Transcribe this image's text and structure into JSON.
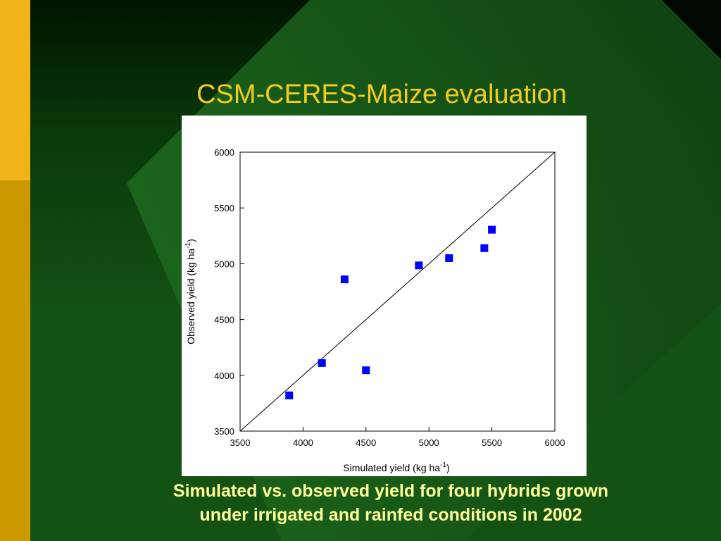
{
  "slide": {
    "title": "CSM-CERES-Maize evaluation",
    "caption_line1": "Simulated vs. observed yield for four hybrids grown",
    "caption_line2": "under irrigated and rainfed conditions in 2002"
  },
  "colors": {
    "background_dark": "#001A00",
    "background_green": "#145214",
    "diamond_green": "#1E6B1E",
    "sidebar_yellow": "#F0B418",
    "sidebar_gold": "#CC9900",
    "title": "#F2CC1E",
    "caption": "#FFFF99",
    "marker": "#0000FF"
  },
  "chart_data": {
    "type": "scatter",
    "title": "",
    "xlabel_main": "Simulated yield (kg ha",
    "xlabel_sup": "-1",
    "xlabel_end": ")",
    "ylabel_main": "Observed yield (kg ha",
    "ylabel_sup": "-1",
    "ylabel_end": ")",
    "xlim": [
      3500,
      6000
    ],
    "ylim": [
      3500,
      6000
    ],
    "xticks": [
      3500,
      4000,
      4500,
      5000,
      5500,
      6000
    ],
    "yticks": [
      3500,
      4000,
      4500,
      5000,
      5500,
      6000
    ],
    "reference_line": "1:1",
    "grid": false,
    "legend": "none",
    "series": [
      {
        "marker": "square",
        "points": [
          {
            "x": 3890,
            "y": 3820
          },
          {
            "x": 4150,
            "y": 4110
          },
          {
            "x": 4330,
            "y": 4860
          },
          {
            "x": 4500,
            "y": 4045
          },
          {
            "x": 4920,
            "y": 4985
          },
          {
            "x": 5160,
            "y": 5050
          },
          {
            "x": 5440,
            "y": 5140
          },
          {
            "x": 5500,
            "y": 5305
          }
        ]
      }
    ]
  }
}
